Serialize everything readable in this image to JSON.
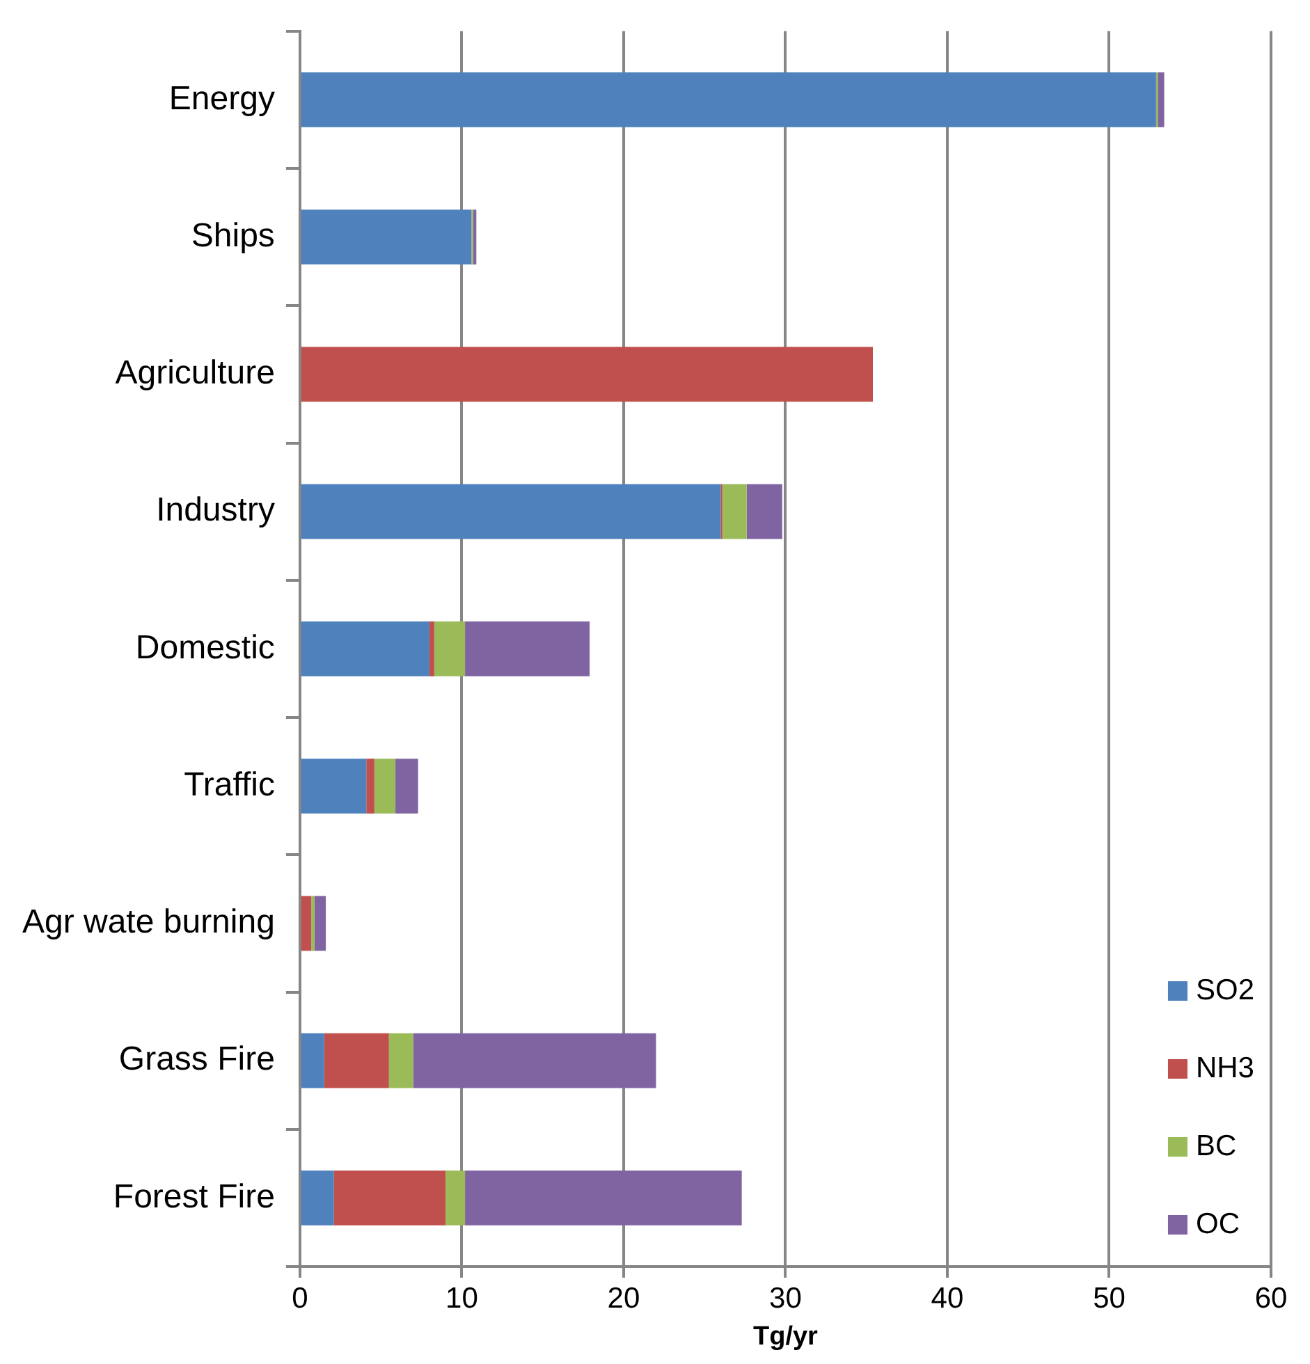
{
  "chart_data": {
    "type": "bar",
    "orientation": "horizontal",
    "stacked": true,
    "xlabel": "Tg/yr",
    "categories": [
      "Energy",
      "Ships",
      "Agriculture",
      "Industry",
      "Domestic",
      "Traffic",
      "Agr wate burning",
      "Grass Fire",
      "Forest Fire"
    ],
    "series": [
      {
        "name": "SO2",
        "color": "#4f81bd",
        "values": [
          52.9,
          10.6,
          0,
          26.0,
          8.0,
          4.1,
          null,
          1.5,
          2.1
        ]
      },
      {
        "name": "NH3",
        "color": "#c0504d",
        "values": [
          0,
          0,
          35.4,
          0.1,
          0.3,
          0.5,
          0.7,
          4.0,
          6.9
        ]
      },
      {
        "name": "BC",
        "color": "#9bbb59",
        "values": [
          0.1,
          0.1,
          0,
          1.5,
          1.9,
          1.3,
          0.2,
          1.5,
          1.2
        ]
      },
      {
        "name": "OC",
        "color": "#8064a2",
        "values": [
          0.4,
          0.2,
          0,
          2.2,
          7.7,
          1.4,
          0.7,
          15.0,
          17.1
        ]
      }
    ],
    "xlim": [
      0,
      60
    ],
    "xticks": [
      0,
      10,
      20,
      30,
      40,
      50,
      60
    ],
    "grid": "x",
    "legend": "bottom right"
  }
}
